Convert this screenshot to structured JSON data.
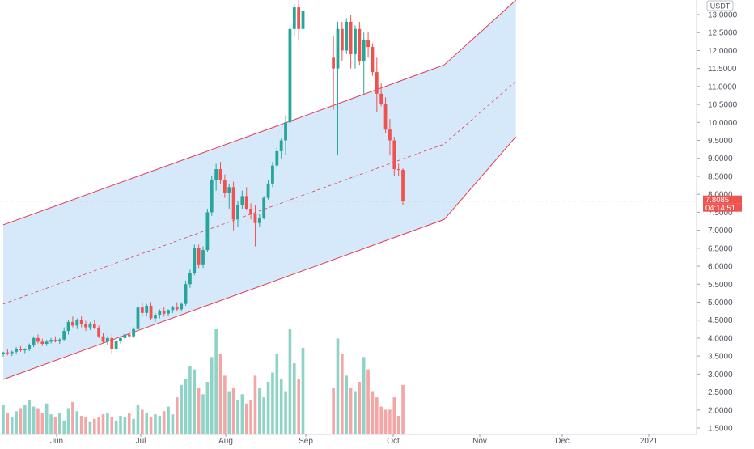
{
  "chart_data": {
    "type": "candlestick",
    "currency": "USDT",
    "last_price": "7.8085",
    "countdown": "04:14:51",
    "y_ticks": [
      "13.0000",
      "12.5000",
      "12.0000",
      "11.5000",
      "11.0000",
      "10.5000",
      "10.0000",
      "9.5000",
      "9.0000",
      "8.5000",
      "8.0000",
      "7.5000",
      "7.0000",
      "6.5000",
      "6.0000",
      "5.5000",
      "5.0000",
      "4.5000",
      "4.0000",
      "3.5000",
      "3.0000",
      "2.5000",
      "2.0000",
      "1.5000"
    ],
    "x_ticks": [
      "Jun",
      "Jul",
      "Aug",
      "Sep",
      "Oct",
      "Nov",
      "Dec",
      "2021"
    ],
    "ylim": [
      1.17,
      13.28
    ],
    "channel": {
      "upper": [
        [
          0,
          7.15
        ],
        [
          63,
          9.9
        ],
        [
          101.5,
          11.6
        ],
        [
          118,
          13.4
        ]
      ],
      "middle": [
        [
          0,
          4.95
        ],
        [
          101.5,
          9.4
        ],
        [
          118,
          11.15
        ]
      ],
      "lower": [
        [
          0,
          2.85
        ],
        [
          101.5,
          7.3
        ],
        [
          118,
          9.6
        ]
      ]
    },
    "ohlc": [
      [
        3.55,
        3.62,
        3.48,
        3.6
      ],
      [
        3.6,
        3.7,
        3.52,
        3.58
      ],
      [
        3.58,
        3.65,
        3.5,
        3.62
      ],
      [
        3.62,
        3.75,
        3.55,
        3.7
      ],
      [
        3.7,
        3.78,
        3.62,
        3.66
      ],
      [
        3.66,
        3.72,
        3.58,
        3.68
      ],
      [
        3.68,
        3.85,
        3.64,
        3.8
      ],
      [
        3.8,
        4.05,
        3.75,
        4.0
      ],
      [
        4.0,
        4.1,
        3.85,
        3.9
      ],
      [
        3.9,
        3.98,
        3.78,
        3.84
      ],
      [
        3.84,
        3.95,
        3.78,
        3.9
      ],
      [
        3.9,
        4.0,
        3.85,
        3.95
      ],
      [
        3.95,
        4.05,
        3.88,
        3.92
      ],
      [
        3.92,
        4.0,
        3.84,
        3.96
      ],
      [
        3.96,
        4.3,
        3.92,
        4.2
      ],
      [
        4.2,
        4.5,
        4.1,
        4.45
      ],
      [
        4.45,
        4.6,
        4.3,
        4.35
      ],
      [
        4.35,
        4.55,
        4.25,
        4.5
      ],
      [
        4.5,
        4.6,
        4.3,
        4.4
      ],
      [
        4.4,
        4.48,
        4.2,
        4.3
      ],
      [
        4.3,
        4.45,
        4.22,
        4.38
      ],
      [
        4.38,
        4.5,
        4.25,
        4.28
      ],
      [
        4.28,
        4.35,
        4.0,
        4.05
      ],
      [
        4.05,
        4.15,
        3.85,
        3.9
      ],
      [
        3.9,
        4.05,
        3.8,
        4.0
      ],
      [
        4.0,
        4.1,
        3.55,
        3.7
      ],
      [
        3.7,
        3.98,
        3.62,
        3.92
      ],
      [
        3.92,
        4.05,
        3.85,
        4.0
      ],
      [
        4.0,
        4.15,
        3.95,
        4.1
      ],
      [
        4.1,
        4.2,
        4.0,
        4.05
      ],
      [
        4.05,
        4.3,
        4.0,
        4.25
      ],
      [
        4.25,
        4.95,
        4.2,
        4.85
      ],
      [
        4.85,
        5.0,
        4.6,
        4.7
      ],
      [
        4.7,
        4.95,
        4.6,
        4.9
      ],
      [
        4.9,
        5.0,
        4.5,
        4.55
      ],
      [
        4.55,
        4.7,
        4.45,
        4.65
      ],
      [
        4.65,
        4.8,
        4.55,
        4.75
      ],
      [
        4.75,
        4.85,
        4.6,
        4.68
      ],
      [
        4.68,
        4.8,
        4.62,
        4.78
      ],
      [
        4.78,
        4.9,
        4.7,
        4.85
      ],
      [
        4.85,
        5.0,
        4.75,
        4.8
      ],
      [
        4.8,
        5.0,
        4.75,
        4.95
      ],
      [
        4.95,
        5.6,
        4.9,
        5.5
      ],
      [
        5.5,
        5.9,
        5.4,
        5.8
      ],
      [
        5.8,
        6.6,
        5.75,
        6.5
      ],
      [
        6.5,
        6.6,
        5.95,
        6.05
      ],
      [
        6.05,
        6.55,
        5.95,
        6.45
      ],
      [
        6.45,
        7.6,
        6.4,
        7.5
      ],
      [
        7.5,
        8.5,
        7.4,
        8.4
      ],
      [
        8.4,
        8.85,
        8.1,
        8.7
      ],
      [
        8.7,
        8.9,
        8.3,
        8.4
      ],
      [
        8.4,
        8.55,
        7.9,
        8.05
      ],
      [
        8.05,
        8.3,
        7.6,
        8.2
      ],
      [
        8.2,
        8.35,
        7.0,
        7.3
      ],
      [
        7.3,
        7.8,
        7.1,
        7.7
      ],
      [
        7.7,
        8.1,
        7.6,
        7.95
      ],
      [
        7.95,
        8.2,
        7.55,
        7.6
      ],
      [
        7.6,
        7.75,
        7.3,
        7.45
      ],
      [
        7.45,
        7.7,
        6.55,
        7.2
      ],
      [
        7.2,
        7.45,
        7.1,
        7.35
      ],
      [
        7.35,
        7.95,
        7.3,
        7.9
      ],
      [
        7.9,
        8.4,
        7.85,
        8.3
      ],
      [
        8.3,
        8.9,
        8.2,
        8.8
      ],
      [
        8.8,
        9.3,
        8.7,
        9.2
      ],
      [
        9.2,
        9.55,
        9.0,
        9.5
      ],
      [
        9.5,
        10.2,
        9.1,
        10.0
      ],
      [
        10.0,
        12.8,
        9.95,
        12.6
      ],
      [
        12.6,
        13.3,
        12.4,
        13.2
      ],
      [
        13.2,
        13.4,
        12.3,
        12.6
      ],
      [
        12.6,
        13.4,
        12.2,
        13.1
      ],
      [
        11.8,
        12.4,
        10.35,
        11.5
      ],
      [
        11.5,
        12.8,
        9.1,
        12.6
      ],
      [
        12.6,
        12.8,
        11.7,
        12.0
      ],
      [
        12.0,
        12.9,
        11.9,
        12.8
      ],
      [
        12.8,
        13.0,
        11.5,
        11.9
      ],
      [
        11.9,
        12.7,
        11.5,
        12.6
      ],
      [
        12.6,
        12.8,
        11.6,
        11.7
      ],
      [
        11.7,
        12.5,
        10.8,
        12.3
      ],
      [
        12.3,
        12.5,
        11.8,
        12.1
      ],
      [
        12.1,
        12.2,
        11.3,
        11.4
      ],
      [
        11.4,
        11.8,
        10.3,
        10.8
      ],
      [
        10.8,
        11.1,
        10.45,
        10.5
      ],
      [
        10.5,
        10.7,
        9.7,
        9.8
      ],
      [
        9.8,
        10.1,
        9.1,
        9.5
      ],
      [
        9.5,
        9.6,
        8.5,
        8.7
      ],
      [
        8.7,
        8.85,
        8.5,
        8.68
      ],
      [
        8.68,
        8.72,
        7.7,
        7.81
      ]
    ],
    "gaps_before_index": [
      70
    ],
    "volume": [
      0.95,
      0.7,
      0.55,
      0.75,
      0.85,
      0.95,
      1.1,
      0.9,
      0.85,
      0.7,
      1.0,
      0.65,
      0.55,
      0.7,
      0.45,
      0.85,
      1.05,
      0.75,
      0.6,
      0.55,
      0.4,
      0.5,
      0.55,
      0.65,
      0.7,
      0.55,
      0.45,
      0.6,
      0.55,
      0.7,
      0.5,
      0.95,
      0.8,
      0.7,
      0.55,
      0.65,
      0.6,
      0.75,
      0.9,
      0.65,
      1.2,
      1.6,
      1.8,
      2.2,
      2.1,
      1.5,
      1.3,
      1.7,
      2.5,
      3.4,
      2.6,
      1.9,
      1.4,
      1.5,
      1.1,
      1.3,
      1.0,
      1.1,
      1.9,
      1.5,
      1.2,
      1.7,
      2.0,
      2.6,
      1.8,
      1.4,
      3.4,
      2.3,
      1.8,
      2.8,
      1.5,
      3.1,
      2.6,
      1.9,
      1.5,
      1.4,
      1.7,
      2.5,
      2.1,
      1.4,
      1.2,
      0.9,
      0.8,
      0.8,
      1.2,
      0.6,
      1.6
    ]
  }
}
